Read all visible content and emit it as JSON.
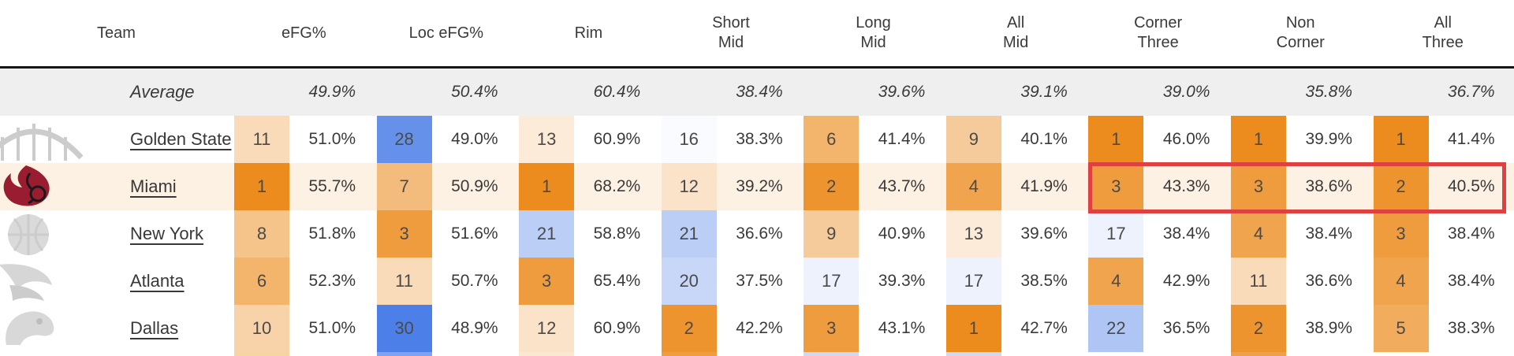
{
  "chart_data": {
    "type": "table",
    "columns": [
      "Team",
      "eFG%",
      "Loc eFG%",
      "Rim",
      "Short\nMid",
      "Long\nMid",
      "All\nMid",
      "Corner\nThree",
      "Non\nCorner",
      "All\nThree"
    ],
    "average_row": {
      "label": "Average",
      "pcts": [
        "49.9%",
        "50.4%",
        "60.4%",
        "38.4%",
        "39.6%",
        "39.1%",
        "39.0%",
        "35.8%",
        "36.7%"
      ]
    },
    "team_rows": [
      {
        "team": "Golden State",
        "logo": "golden-state-logo",
        "cells": [
          {
            "rank": 11,
            "pct": "51.0%"
          },
          {
            "rank": 28,
            "pct": "49.0%"
          },
          {
            "rank": 13,
            "pct": "60.9%"
          },
          {
            "rank": 16,
            "pct": "38.3%"
          },
          {
            "rank": 6,
            "pct": "41.4%"
          },
          {
            "rank": 9,
            "pct": "40.1%"
          },
          {
            "rank": 1,
            "pct": "46.0%"
          },
          {
            "rank": 1,
            "pct": "39.9%"
          },
          {
            "rank": 1,
            "pct": "41.4%"
          }
        ]
      },
      {
        "team": "Miami",
        "logo": "miami-logo",
        "row_highlight": true,
        "cells": [
          {
            "rank": 1,
            "pct": "55.7%"
          },
          {
            "rank": 7,
            "pct": "50.9%"
          },
          {
            "rank": 1,
            "pct": "68.2%"
          },
          {
            "rank": 12,
            "pct": "39.2%"
          },
          {
            "rank": 2,
            "pct": "43.7%"
          },
          {
            "rank": 4,
            "pct": "41.9%"
          },
          {
            "rank": 3,
            "pct": "43.3%"
          },
          {
            "rank": 3,
            "pct": "38.6%"
          },
          {
            "rank": 2,
            "pct": "40.5%"
          }
        ]
      },
      {
        "team": "New York",
        "logo": "new-york-logo",
        "cells": [
          {
            "rank": 8,
            "pct": "51.8%"
          },
          {
            "rank": 3,
            "pct": "51.6%"
          },
          {
            "rank": 21,
            "pct": "58.8%"
          },
          {
            "rank": 21,
            "pct": "36.6%"
          },
          {
            "rank": 9,
            "pct": "40.9%"
          },
          {
            "rank": 13,
            "pct": "39.6%"
          },
          {
            "rank": 17,
            "pct": "38.4%"
          },
          {
            "rank": 4,
            "pct": "38.4%"
          },
          {
            "rank": 3,
            "pct": "38.4%"
          }
        ]
      },
      {
        "team": "Atlanta",
        "logo": "atlanta-logo",
        "cells": [
          {
            "rank": 6,
            "pct": "52.3%"
          },
          {
            "rank": 11,
            "pct": "50.7%"
          },
          {
            "rank": 3,
            "pct": "65.4%"
          },
          {
            "rank": 20,
            "pct": "37.5%"
          },
          {
            "rank": 17,
            "pct": "39.3%"
          },
          {
            "rank": 17,
            "pct": "38.5%"
          },
          {
            "rank": 4,
            "pct": "42.9%"
          },
          {
            "rank": 11,
            "pct": "36.6%"
          },
          {
            "rank": 4,
            "pct": "38.4%"
          }
        ]
      },
      {
        "team": "Dallas",
        "logo": "dallas-logo",
        "cells": [
          {
            "rank": 10,
            "pct": "51.0%"
          },
          {
            "rank": 30,
            "pct": "48.9%"
          },
          {
            "rank": 12,
            "pct": "60.9%"
          },
          {
            "rank": 2,
            "pct": "42.2%"
          },
          {
            "rank": 3,
            "pct": "43.1%"
          },
          {
            "rank": 1,
            "pct": "42.7%"
          },
          {
            "rank": 22,
            "pct": "36.5%"
          },
          {
            "rank": 2,
            "pct": "38.9%"
          },
          {
            "rank": 5,
            "pct": "38.3%"
          }
        ]
      }
    ],
    "layout_hints": {
      "rank_scale": "1 = best (orange) to 30 = worst (blue), white near rank 15-16",
      "highlight_box_row": "Miami",
      "highlight_box_columns": [
        "Corner\nThree",
        "Non\nCorner",
        "All\nThree"
      ]
    }
  },
  "heatmap": {
    "low_rank_color": "#ec8c1f",
    "mid_color": "#ffffff",
    "high_rank_color": "#4d7fe8",
    "mid_rank": 15.5,
    "max_rank": 30
  },
  "colors": {
    "highlight_box": "#de4140",
    "miami_row_bg": "#fcf1e3",
    "average_row_bg": "#efefef",
    "header_border": "#161616",
    "miami_logo_red": "#9a1c31",
    "gray_logo": "#cccccc"
  },
  "partial_next_row_colors": [
    "#f6d5a2",
    "#7fa3f0",
    "#fbe8d1",
    "#ef9d3e",
    "#ccdaf8",
    "#ccdaf8",
    "#ffffff",
    "#efa04c",
    "#ffffff"
  ]
}
